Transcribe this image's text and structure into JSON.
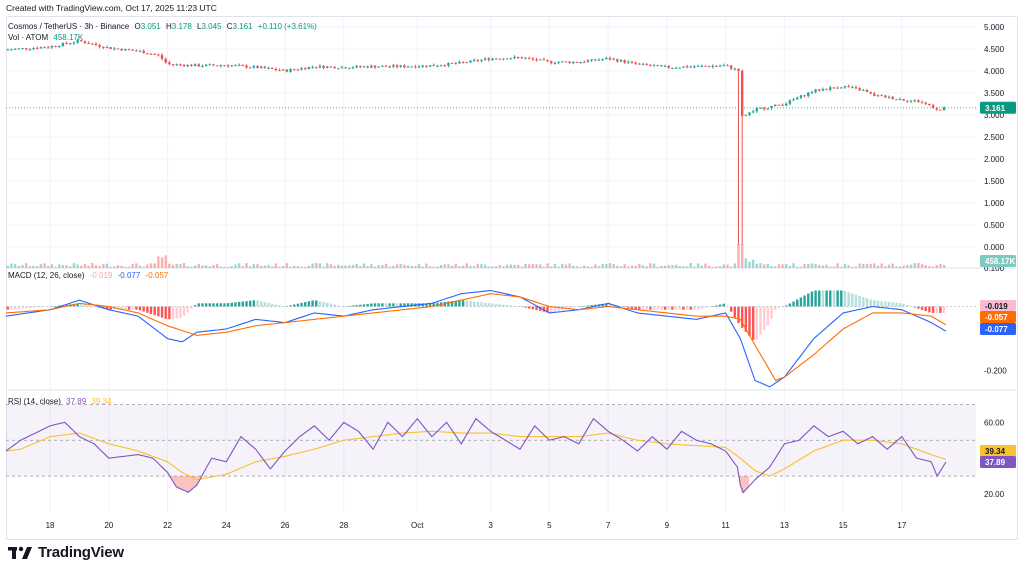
{
  "header": {
    "created_text": "Created with TradingView.com, Oct 17, 2025 11:23 UTC"
  },
  "brand": {
    "name": "TradingView"
  },
  "colors": {
    "up": "#26a69a",
    "down": "#ef5350",
    "macd": "#2962ff",
    "signal": "#ff6d00",
    "rsi": "#7e57c2",
    "rsi_ma": "#fbc02d",
    "grid": "#f0f3fa",
    "axis_text": "#131722"
  },
  "main": {
    "symbol": "Cosmos / TetherUS · 3h · Binance",
    "open_label": "O",
    "open_value": "3.051",
    "high_label": "H",
    "high_value": "3.178",
    "low_label": "L",
    "low_value": "3.045",
    "close_label": "C",
    "close_value": "3.161",
    "change": "+0.110 (+3.61%)",
    "vol_label": "Vol · ATOM",
    "vol_value": "458.17K",
    "last_price_tag": "3.161",
    "volume_tag": "458.17K"
  },
  "macd": {
    "label": "MACD (12, 26, close)",
    "hist_value": "-0.019",
    "macd_value": "-0.077",
    "signal_value": "-0.057",
    "tag_hist": "-0.019",
    "tag_signal": "-0.057",
    "tag_macd": "-0.077"
  },
  "rsi": {
    "label": "RSI (14, close)",
    "rsi_value": "37.89",
    "ma_value": "39.34",
    "tag_ma": "39.34",
    "tag_rsi": "37.89"
  },
  "chart_data": [
    {
      "type": "candlestick",
      "title": "Cosmos / TetherUS · 3h · Binance",
      "xlabel": "",
      "ylabel": "",
      "x_ticks": [
        "18",
        "20",
        "22",
        "24",
        "26",
        "28",
        "Oct",
        "3",
        "5",
        "7",
        "9",
        "11",
        "13",
        "15",
        "17"
      ],
      "x_start_day": 16.5,
      "x_end_day": 48.5,
      "y_ticks": [
        "5.000",
        "4.500",
        "4.000",
        "3.500",
        "3.000",
        "2.500",
        "2.000",
        "1.500",
        "1.000",
        "0.500",
        "0.000"
      ],
      "ylim": [
        -0.25,
        5.2
      ],
      "anchors": [
        [
          16.5,
          4.48
        ],
        [
          18,
          4.55
        ],
        [
          19,
          4.68
        ],
        [
          20,
          4.52
        ],
        [
          21,
          4.45
        ],
        [
          21.7,
          4.35
        ],
        [
          22,
          4.15
        ],
        [
          23,
          4.12
        ],
        [
          24,
          4.13
        ],
        [
          25,
          4.08
        ],
        [
          26,
          4.0
        ],
        [
          27,
          4.1
        ],
        [
          28,
          4.08
        ],
        [
          29,
          4.1
        ],
        [
          30,
          4.1
        ],
        [
          31,
          4.12
        ],
        [
          32,
          4.18
        ],
        [
          33,
          4.28
        ],
        [
          34,
          4.3
        ],
        [
          35,
          4.2
        ],
        [
          36,
          4.2
        ],
        [
          37,
          4.28
        ],
        [
          38,
          4.15
        ],
        [
          39,
          4.08
        ],
        [
          40,
          4.1
        ],
        [
          41,
          4.12
        ],
        [
          41.45,
          4.0
        ],
        [
          41.55,
          2.95
        ],
        [
          42,
          3.12
        ],
        [
          43,
          3.25
        ],
        [
          44,
          3.55
        ],
        [
          45,
          3.65
        ],
        [
          45.7,
          3.55
        ],
        [
          46,
          3.45
        ],
        [
          47,
          3.35
        ],
        [
          47.6,
          3.3
        ],
        [
          48,
          3.2
        ],
        [
          48.3,
          3.1
        ],
        [
          48.5,
          3.161
        ]
      ],
      "spike": {
        "day": 41.5,
        "low": 0.05
      },
      "last_price": 3.161
    },
    {
      "type": "bar",
      "title": "Vol · ATOM",
      "last_value": "458.17K",
      "notes": "volume spike at Oct 10 crash"
    },
    {
      "type": "line",
      "title": "MACD (12, 26, close)",
      "y_ticks": [
        "0.100",
        "0.000",
        "-0.200"
      ],
      "ylim": [
        -0.26,
        0.12
      ],
      "series": [
        {
          "name": "MACD",
          "anchors": [
            [
              16.5,
              -0.03
            ],
            [
              18,
              -0.01
            ],
            [
              19,
              0.02
            ],
            [
              20,
              -0.01
            ],
            [
              21,
              -0.03
            ],
            [
              22,
              -0.1
            ],
            [
              22.5,
              -0.11
            ],
            [
              23,
              -0.08
            ],
            [
              24,
              -0.07
            ],
            [
              25,
              -0.04
            ],
            [
              26,
              -0.05
            ],
            [
              27,
              -0.02
            ],
            [
              28,
              -0.03
            ],
            [
              29,
              -0.01
            ],
            [
              30,
              0.0
            ],
            [
              31,
              0.01
            ],
            [
              32,
              0.04
            ],
            [
              33,
              0.05
            ],
            [
              34,
              0.03
            ],
            [
              35,
              -0.02
            ],
            [
              36,
              -0.01
            ],
            [
              37,
              0.01
            ],
            [
              38,
              -0.02
            ],
            [
              39,
              -0.03
            ],
            [
              40,
              -0.04
            ],
            [
              41,
              -0.02
            ],
            [
              41.5,
              -0.1
            ],
            [
              42,
              -0.23
            ],
            [
              42.5,
              -0.25
            ],
            [
              43,
              -0.22
            ],
            [
              44,
              -0.1
            ],
            [
              45,
              -0.02
            ],
            [
              46,
              0.0
            ],
            [
              47,
              -0.01
            ],
            [
              48,
              -0.05
            ],
            [
              48.5,
              -0.077
            ]
          ]
        },
        {
          "name": "Signal",
          "anchors": [
            [
              16.5,
              -0.02
            ],
            [
              18,
              -0.01
            ],
            [
              19,
              0.01
            ],
            [
              20,
              0.0
            ],
            [
              21,
              -0.02
            ],
            [
              22,
              -0.06
            ],
            [
              23,
              -0.09
            ],
            [
              24,
              -0.08
            ],
            [
              25,
              -0.06
            ],
            [
              26,
              -0.05
            ],
            [
              27,
              -0.04
            ],
            [
              28,
              -0.03
            ],
            [
              29,
              -0.02
            ],
            [
              30,
              -0.01
            ],
            [
              31,
              0.0
            ],
            [
              32,
              0.02
            ],
            [
              33,
              0.04
            ],
            [
              34,
              0.03
            ],
            [
              35,
              0.0
            ],
            [
              36,
              -0.01
            ],
            [
              37,
              0.0
            ],
            [
              38,
              -0.01
            ],
            [
              39,
              -0.02
            ],
            [
              40,
              -0.03
            ],
            [
              41,
              -0.03
            ],
            [
              41.5,
              -0.04
            ],
            [
              42,
              -0.12
            ],
            [
              42.7,
              -0.23
            ],
            [
              43,
              -0.22
            ],
            [
              44,
              -0.15
            ],
            [
              45,
              -0.07
            ],
            [
              46,
              -0.02
            ],
            [
              47,
              -0.02
            ],
            [
              48,
              -0.03
            ],
            [
              48.5,
              -0.057
            ]
          ]
        }
      ]
    },
    {
      "type": "line",
      "title": "RSI (14, close)",
      "y_ticks": [
        "60.00",
        "20.00"
      ],
      "ylim": [
        10,
        78
      ],
      "band": [
        30,
        70
      ],
      "series": [
        {
          "name": "RSI",
          "anchors": [
            [
              16.5,
              44
            ],
            [
              17,
              50
            ],
            [
              18,
              58
            ],
            [
              18.5,
              60
            ],
            [
              19,
              52
            ],
            [
              19.5,
              48
            ],
            [
              20,
              40
            ],
            [
              21,
              42
            ],
            [
              21.5,
              40
            ],
            [
              22,
              32
            ],
            [
              22.3,
              24
            ],
            [
              22.7,
              21
            ],
            [
              23,
              25
            ],
            [
              23.5,
              40
            ],
            [
              24,
              38
            ],
            [
              24.5,
              52
            ],
            [
              25,
              45
            ],
            [
              25.5,
              34
            ],
            [
              26,
              44
            ],
            [
              26.5,
              52
            ],
            [
              27,
              58
            ],
            [
              27.5,
              50
            ],
            [
              28,
              60
            ],
            [
              28.5,
              55
            ],
            [
              29,
              45
            ],
            [
              29.5,
              60
            ],
            [
              30,
              52
            ],
            [
              30.5,
              62
            ],
            [
              31,
              52
            ],
            [
              31.5,
              60
            ],
            [
              32,
              48
            ],
            [
              32.5,
              62
            ],
            [
              33,
              55
            ],
            [
              33.5,
              50
            ],
            [
              34,
              45
            ],
            [
              34.5,
              58
            ],
            [
              35,
              50
            ],
            [
              35.5,
              52
            ],
            [
              36,
              48
            ],
            [
              36.5,
              62
            ],
            [
              37,
              55
            ],
            [
              37.5,
              50
            ],
            [
              38,
              44
            ],
            [
              38.5,
              52
            ],
            [
              39,
              45
            ],
            [
              39.5,
              55
            ],
            [
              40,
              50
            ],
            [
              40.5,
              48
            ],
            [
              41,
              44
            ],
            [
              41.4,
              35
            ],
            [
              41.55,
              20
            ],
            [
              42,
              28
            ],
            [
              42.5,
              35
            ],
            [
              43,
              48
            ],
            [
              43.5,
              50
            ],
            [
              44,
              58
            ],
            [
              44.5,
              52
            ],
            [
              45,
              55
            ],
            [
              45.5,
              48
            ],
            [
              46,
              52
            ],
            [
              46.5,
              45
            ],
            [
              47,
              52
            ],
            [
              47.5,
              40
            ],
            [
              48,
              38
            ],
            [
              48.2,
              30
            ],
            [
              48.5,
              37.89
            ]
          ]
        },
        {
          "name": "RSI-based MA",
          "anchors": [
            [
              16.5,
              44
            ],
            [
              17,
              45
            ],
            [
              18,
              52
            ],
            [
              19,
              54
            ],
            [
              20,
              48
            ],
            [
              21,
              44
            ],
            [
              22,
              38
            ],
            [
              22.5,
              32
            ],
            [
              23,
              28
            ],
            [
              24,
              31
            ],
            [
              25,
              38
            ],
            [
              26,
              41
            ],
            [
              27,
              45
            ],
            [
              28,
              50
            ],
            [
              29,
              52
            ],
            [
              30,
              54
            ],
            [
              31,
              55
            ],
            [
              32,
              54
            ],
            [
              33,
              54
            ],
            [
              34,
              52
            ],
            [
              35,
              52
            ],
            [
              36,
              52
            ],
            [
              37,
              54
            ],
            [
              38,
              50
            ],
            [
              39,
              48
            ],
            [
              40,
              47
            ],
            [
              41,
              46
            ],
            [
              41.5,
              40
            ],
            [
              42,
              33
            ],
            [
              42.5,
              30
            ],
            [
              43,
              34
            ],
            [
              44,
              44
            ],
            [
              45,
              50
            ],
            [
              46,
              50
            ],
            [
              47,
              48
            ],
            [
              48,
              42
            ],
            [
              48.5,
              39.34
            ]
          ]
        }
      ]
    }
  ]
}
